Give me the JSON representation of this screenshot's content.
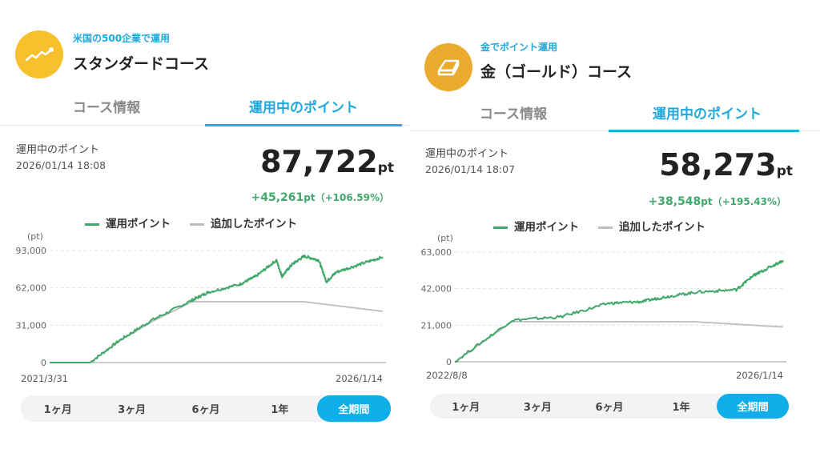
{
  "panels": [
    {
      "subtitle": "米国の500企業で運用",
      "title": "スタンダードコース",
      "icon": "chart-trend-icon",
      "tabs": [
        "コース情報",
        "運用中のポイント"
      ],
      "active_tab": 1,
      "label": "運用中のポイント",
      "date": "2026/01/14 18:08",
      "points": "87,722",
      "unit": "pt",
      "gain": "+45,261",
      "gain_unit": "pt",
      "gain_pct": "（+106.59%）",
      "legend": [
        "運用ポイント",
        "追加したポイント"
      ],
      "y_unit": "(pt)",
      "periods": [
        "1ヶ月",
        "3ヶ月",
        "6ヶ月",
        "1年",
        "全期間"
      ],
      "selected_period": 4
    },
    {
      "subtitle": "金でポイント運用",
      "title": "金（ゴールド）コース",
      "icon": "gold-bar-icon",
      "tabs": [
        "コース情報",
        "運用中のポイント"
      ],
      "active_tab": 1,
      "label": "運用中のポイント",
      "date": "2026/01/14 18:07",
      "points": "58,273",
      "unit": "pt",
      "gain": "+38,548",
      "gain_unit": "pt",
      "gain_pct": "（+195.43%）",
      "legend": [
        "運用ポイント",
        "追加したポイント"
      ],
      "y_unit": "(pt)",
      "periods": [
        "1ヶ月",
        "3ヶ月",
        "6ヶ月",
        "1年",
        "全期間"
      ],
      "selected_period": 4
    }
  ],
  "colors": {
    "accent": "#1fa8dc",
    "green": "#3fa86a",
    "gray": "#bdbdbd",
    "gold": "#e9aa2e",
    "yellow": "#f9c02e"
  },
  "chart_data": [
    {
      "type": "line",
      "ylim": [
        0,
        93000
      ],
      "yticks": [
        "0",
        "31,000",
        "62,000",
        "93,000"
      ],
      "ytick_values": [
        0,
        31000,
        62000,
        93000
      ],
      "xlim": [
        2021.25,
        2026.04
      ],
      "xtick_labels": [
        "2021/3/31",
        "2026/1/14"
      ],
      "series": [
        {
          "name": "運用ポイント",
          "color": "#3fa86a",
          "x": [
            2021.25,
            2021.83,
            2022.26,
            2022.72,
            2023.3,
            2023.53,
            2023.99,
            2024.22,
            2024.51,
            2024.59,
            2024.74,
            2024.91,
            2025.12,
            2025.23,
            2025.37,
            2025.72,
            2026.04
          ],
          "y": [
            0,
            0,
            18600,
            35200,
            51800,
            58400,
            65100,
            71700,
            85000,
            71700,
            81700,
            88300,
            85000,
            67100,
            75000,
            81700,
            87722
          ]
        },
        {
          "name": "追加したポイント",
          "color": "#bdbdbd",
          "x": [
            2021.25,
            2021.83,
            2022.26,
            2022.72,
            2023.3,
            2024.91,
            2026.04
          ],
          "y": [
            0,
            0,
            18000,
            34000,
            50500,
            50500,
            42500
          ]
        }
      ]
    },
    {
      "type": "line",
      "ylim": [
        0,
        63000
      ],
      "yticks": [
        "0",
        "21,000",
        "42,000",
        "63,000"
      ],
      "ytick_values": [
        0,
        21000,
        42000,
        63000
      ],
      "xlim": [
        2022.6,
        2026.04
      ],
      "xtick_labels": [
        "2022/8/8",
        "2026/1/14"
      ],
      "series": [
        {
          "name": "運用ポイント",
          "color": "#3fa86a",
          "x": [
            2022.6,
            2023.2,
            2023.71,
            2024.21,
            2024.55,
            2024.8,
            2025.13,
            2025.55,
            2025.72,
            2025.8,
            2026.04
          ],
          "y": [
            0,
            23900,
            25800,
            33600,
            34500,
            37200,
            40000,
            41400,
            49200,
            51500,
            58273
          ]
        },
        {
          "name": "追加したポイント",
          "color": "#bdbdbd",
          "x": [
            2022.6,
            2023.2,
            2025.1,
            2026.04
          ],
          "y": [
            0,
            23000,
            23000,
            20000
          ]
        }
      ]
    }
  ]
}
